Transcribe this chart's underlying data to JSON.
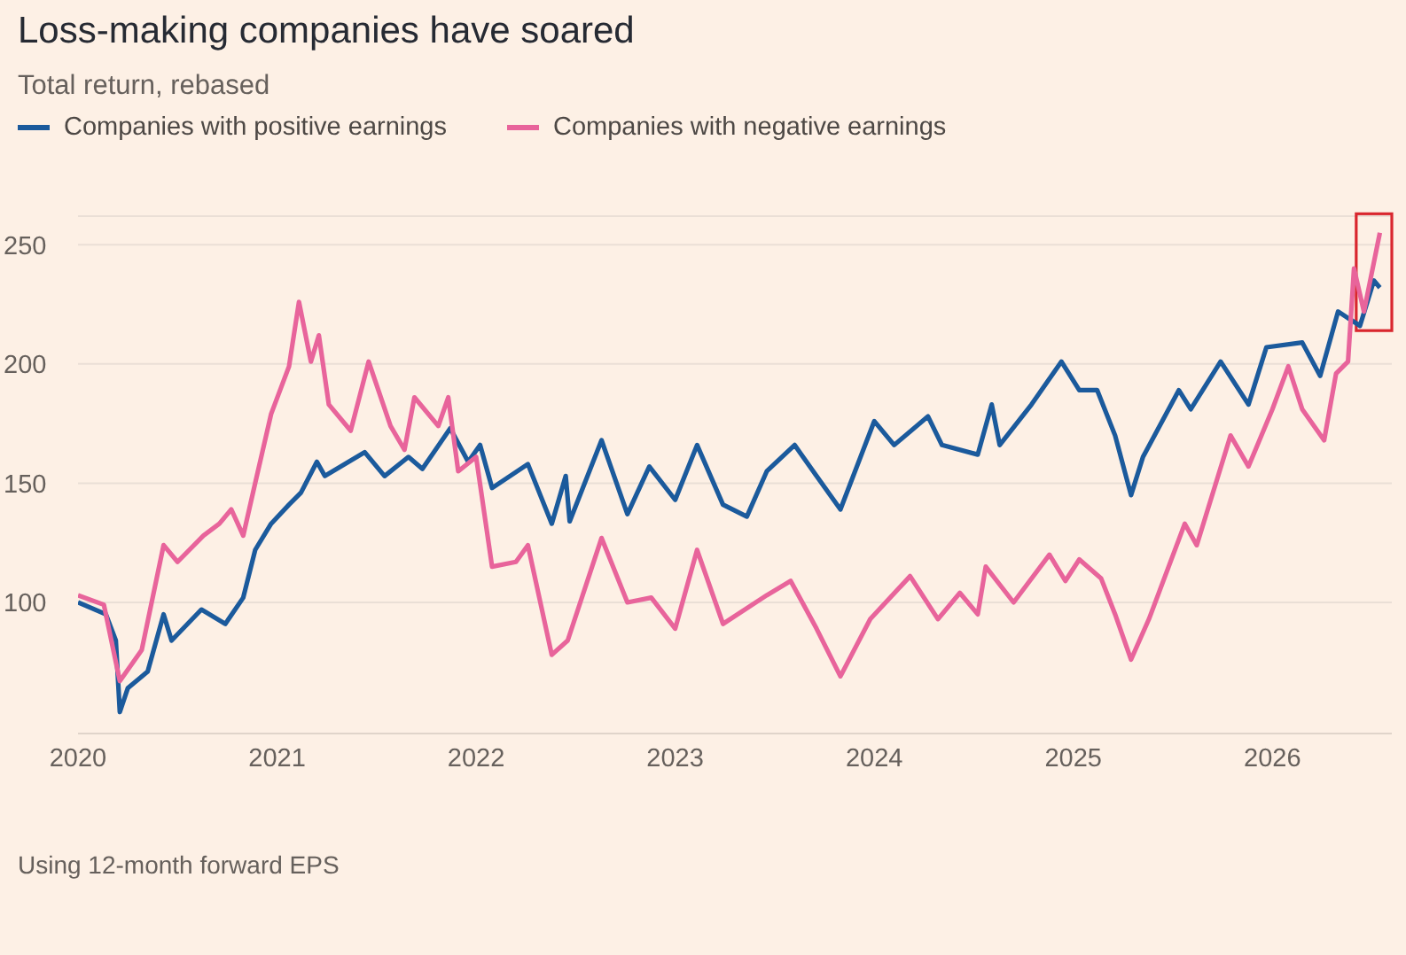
{
  "chart_data": {
    "type": "line",
    "title": "Loss-making companies have soared",
    "subtitle": "Total return, rebased",
    "x": [
      2020.0,
      2020.14,
      2020.19,
      2020.21,
      2020.25,
      2020.35,
      2020.43,
      2020.47,
      2020.62,
      2020.74,
      2020.83,
      2020.89,
      2020.97,
      2021.06,
      2021.12,
      2021.2,
      2021.24,
      2021.44,
      2021.54,
      2021.66,
      2021.73,
      2021.87,
      2021.96,
      2022.02,
      2022.08,
      2022.26,
      2022.38,
      2022.45,
      2022.47,
      2022.63,
      2022.76,
      2022.87,
      2023.0,
      2023.11,
      2023.24,
      2023.36,
      2023.46,
      2023.6,
      2023.71,
      2023.83,
      2024.0,
      2024.1,
      2024.27,
      2024.34,
      2024.52,
      2024.59,
      2024.63,
      2024.79,
      2024.94,
      2025.03,
      2025.12,
      2025.21,
      2025.29,
      2025.35,
      2025.53,
      2025.59,
      2025.74,
      2025.88,
      2025.97,
      2026.15,
      2026.24,
      2026.33,
      2026.44,
      2026.51,
      2026.54
    ],
    "series": [
      {
        "name": "Companies with positive earnings",
        "color": "#1b5a9c",
        "values": [
          100,
          95,
          84,
          54,
          64,
          71,
          95,
          84,
          97,
          91,
          102,
          122,
          133,
          141,
          146,
          159,
          153,
          163,
          153,
          161,
          156,
          173,
          159,
          166,
          148,
          158,
          133,
          153,
          134,
          168,
          137,
          157,
          143,
          166,
          141,
          136,
          155,
          166,
          153,
          139,
          176,
          166,
          178,
          166,
          162,
          183,
          166,
          183,
          201,
          189,
          189,
          170,
          145,
          161,
          189,
          181,
          201,
          183,
          207,
          209,
          195,
          222,
          216,
          235,
          232
        ]
      },
      {
        "name": "Companies with negative earnings",
        "color": "#e8649b",
        "x": [
          2020.0,
          2020.13,
          2020.21,
          2020.32,
          2020.43,
          2020.5,
          2020.63,
          2020.71,
          2020.77,
          2020.83,
          2020.89,
          2020.97,
          2021.06,
          2021.11,
          2021.17,
          2021.21,
          2021.26,
          2021.37,
          2021.46,
          2021.57,
          2021.64,
          2021.69,
          2021.81,
          2021.86,
          2021.91,
          2022.0,
          2022.08,
          2022.2,
          2022.26,
          2022.38,
          2022.46,
          2022.63,
          2022.76,
          2022.88,
          2023.0,
          2023.11,
          2023.24,
          2023.46,
          2023.58,
          2023.71,
          2023.83,
          2023.98,
          2024.18,
          2024.32,
          2024.43,
          2024.52,
          2024.56,
          2024.7,
          2024.88,
          2024.96,
          2025.03,
          2025.14,
          2025.21,
          2025.29,
          2025.38,
          2025.56,
          2025.62,
          2025.79,
          2025.88,
          2026.0,
          2026.08,
          2026.15,
          2026.26,
          2026.32,
          2026.38,
          2026.41,
          2026.46,
          2026.54
        ],
        "values": [
          103,
          99,
          67,
          80,
          124,
          117,
          128,
          133,
          139,
          128,
          150,
          179,
          199,
          226,
          201,
          212,
          183,
          172,
          201,
          174,
          164,
          186,
          174,
          186,
          155,
          161,
          115,
          117,
          124,
          78,
          84,
          127,
          100,
          102,
          89,
          122,
          91,
          103,
          109,
          89,
          69,
          93,
          111,
          93,
          104,
          95,
          115,
          100,
          120,
          109,
          118,
          110,
          95,
          76,
          93,
          133,
          124,
          170,
          157,
          181,
          199,
          181,
          168,
          196,
          201,
          240,
          222,
          255
        ]
      }
    ],
    "xlim": [
      2020,
      2026.6
    ],
    "xticks": [
      2020,
      2021,
      2022,
      2023,
      2024,
      2025,
      2026
    ],
    "ylim": [
      45,
      262
    ],
    "yticks": [
      100,
      150,
      200,
      250
    ],
    "grid": "y",
    "legend": "top left",
    "annotations": [
      "Using 12-month forward EPS"
    ]
  }
}
